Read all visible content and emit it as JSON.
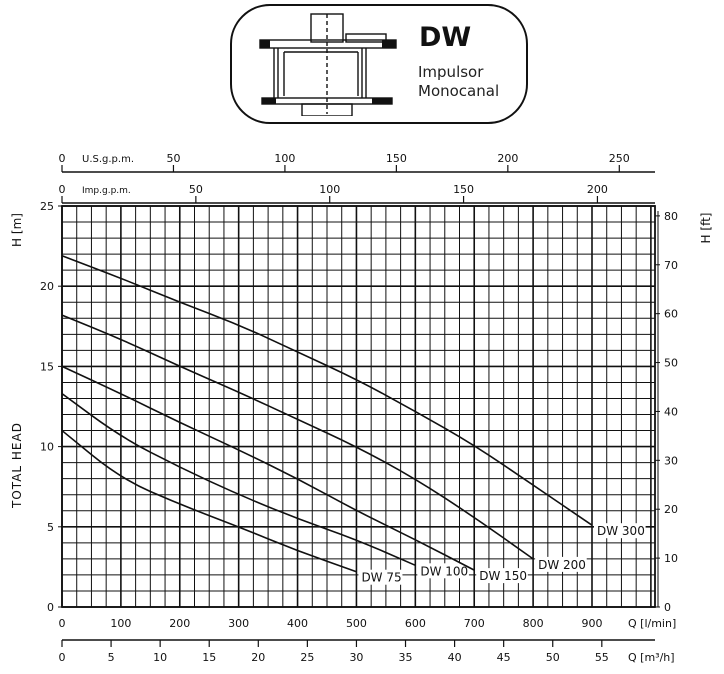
{
  "header": {
    "model": "DW",
    "description_line1": "Impulsor",
    "description_line2": "Monocanal"
  },
  "icons": {
    "pump": "pump-impeller-section-icon"
  },
  "colors": {
    "ink": "#111111",
    "background": "#ffffff"
  },
  "chart_data": {
    "type": "line",
    "ylabel": "H [m]",
    "ylabel_right": "H [ft]",
    "ylabel_side": "TOTAL HEAD",
    "ylim": [
      0,
      25
    ],
    "yticks": [
      0,
      5,
      10,
      15,
      20,
      25
    ],
    "ylim_right": [
      0,
      82
    ],
    "yticks_right": [
      0,
      10,
      20,
      30,
      40,
      50,
      60,
      70,
      80
    ],
    "xlabel": "Q [l/min]",
    "xlim": [
      0,
      1000
    ],
    "xticks": [
      0,
      100,
      200,
      300,
      400,
      500,
      600,
      700,
      800,
      900
    ],
    "xlabel_m3h": "Q [m³/h]",
    "xticks_m3h": [
      0,
      5,
      10,
      15,
      20,
      25,
      30,
      35,
      40,
      45,
      50,
      55
    ],
    "xlabel_usgpm": "U.S.g.p.m.",
    "xticks_usgpm": [
      0,
      50,
      100,
      150,
      200,
      250
    ],
    "xlabel_impgpm": "Imp.g.p.m.",
    "xticks_impgpm": [
      0,
      50,
      100,
      150,
      200
    ],
    "grid": true,
    "series": [
      {
        "name": "DW 75",
        "x": [
          0,
          100,
          200,
          300,
          400,
          500
        ],
        "y": [
          11.0,
          8.0,
          6.4,
          5.0,
          3.5,
          2.2
        ]
      },
      {
        "name": "DW 100",
        "x": [
          0,
          100,
          200,
          300,
          400,
          500,
          600
        ],
        "y": [
          13.3,
          10.6,
          8.7,
          7.0,
          5.5,
          4.2,
          2.6
        ]
      },
      {
        "name": "DW 150",
        "x": [
          0,
          100,
          200,
          300,
          400,
          500,
          600,
          700
        ],
        "y": [
          15.0,
          13.3,
          11.5,
          9.8,
          8.0,
          6.0,
          4.2,
          2.3
        ]
      },
      {
        "name": "DW 200",
        "x": [
          0,
          100,
          200,
          300,
          400,
          500,
          600,
          700,
          800
        ],
        "y": [
          18.2,
          16.7,
          15.0,
          13.4,
          11.7,
          10.0,
          8.0,
          5.6,
          3.0
        ]
      },
      {
        "name": "DW 300",
        "x": [
          0,
          100,
          200,
          300,
          400,
          500,
          600,
          700,
          800,
          900
        ],
        "y": [
          21.9,
          20.5,
          19.0,
          17.6,
          15.9,
          14.2,
          12.2,
          10.1,
          7.6,
          5.1
        ]
      }
    ]
  }
}
